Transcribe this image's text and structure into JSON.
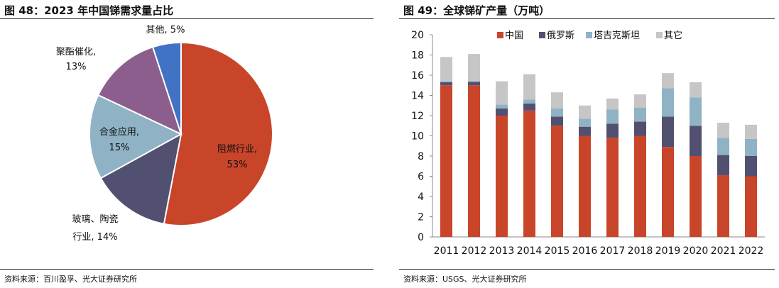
{
  "left": {
    "figure_title": "图 48：2023 年中国锑需求量占比",
    "source": "资料来源：百川盈孚、光大证券研究所"
  },
  "right": {
    "figure_title": "图 49：全球锑矿产量（万吨）",
    "source": "资料来源：USGS、光大证券研究所"
  },
  "chart_data": [
    {
      "type": "pie",
      "title": "",
      "slices": [
        {
          "label": "阻燃行业",
          "value": 53,
          "value_label": "53%",
          "color": "#c9452a"
        },
        {
          "label": "玻璃、陶瓷行业",
          "label_lines": [
            "玻璃、陶瓷",
            "行业, 14%"
          ],
          "value": 14,
          "value_label": "14%",
          "color": "#525071"
        },
        {
          "label": "合金应用",
          "value": 15,
          "value_label": "15%",
          "color": "#8fb2c5"
        },
        {
          "label": "聚酯催化",
          "value": 13,
          "value_label": "13%",
          "color": "#8b5e8d"
        },
        {
          "label": "其他",
          "value": 5,
          "value_label": "5%",
          "color": "#4272c4"
        }
      ]
    },
    {
      "type": "bar",
      "stacked": true,
      "title": "",
      "xlabel": "",
      "ylabel": "",
      "ylim": [
        0,
        20
      ],
      "yticks": [
        0,
        2,
        4,
        6,
        8,
        10,
        12,
        14,
        16,
        18,
        20
      ],
      "grid": false,
      "legend_position": "top",
      "categories": [
        "2011",
        "2012",
        "2013",
        "2014",
        "2015",
        "2016",
        "2017",
        "2018",
        "2019",
        "2020",
        "2021",
        "2022"
      ],
      "series": [
        {
          "name": "中国",
          "color": "#c9452a",
          "values": [
            15.0,
            15.0,
            12.0,
            12.5,
            11.0,
            10.0,
            9.8,
            10.0,
            8.9,
            8.0,
            6.1,
            6.0
          ]
        },
        {
          "name": "俄罗斯",
          "color": "#525071",
          "values": [
            0.3,
            0.35,
            0.7,
            0.7,
            0.9,
            0.9,
            1.4,
            1.4,
            3.0,
            3.0,
            2.0,
            2.0
          ]
        },
        {
          "name": "塔吉克斯坦",
          "color": "#8fb2c5",
          "values": [
            0.1,
            0.05,
            0.4,
            0.4,
            0.8,
            0.8,
            1.4,
            1.4,
            2.8,
            2.8,
            1.7,
            1.7
          ]
        },
        {
          "name": "其它",
          "color": "#c6c6c6",
          "values": [
            2.4,
            2.7,
            2.3,
            2.5,
            1.6,
            1.3,
            1.1,
            1.3,
            1.5,
            1.5,
            1.5,
            1.4
          ]
        }
      ]
    }
  ]
}
